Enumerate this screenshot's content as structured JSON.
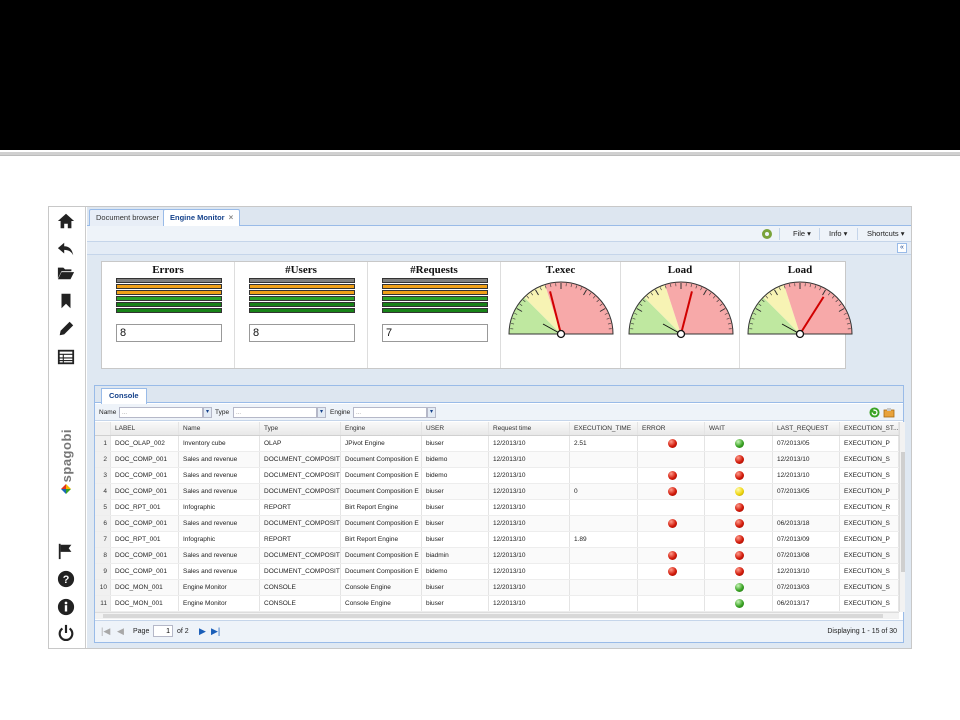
{
  "tabs": [
    {
      "label": "Document browser"
    },
    {
      "label": "Engine Monitor",
      "close": "×"
    }
  ],
  "toolbar": {
    "file": "File ▾",
    "info": "Info ▾",
    "shortcuts": "Shortcuts ▾"
  },
  "brand": {
    "name": "spagobi"
  },
  "widgets": [
    {
      "title": "Errors",
      "value": "8"
    },
    {
      "title": "#Users",
      "value": "8"
    },
    {
      "title": "#Requests",
      "value": "7"
    },
    {
      "title": "T.exec"
    },
    {
      "title": "Load"
    },
    {
      "title": "Load"
    }
  ],
  "bar_colors": [
    "#7f7f7f",
    "#f0a018",
    "#f0a018",
    "#2aa02a",
    "#178317",
    "#178317"
  ],
  "gauges": [
    {
      "needle_fraction": 0.42
    },
    {
      "needle_fraction": 0.58
    },
    {
      "needle_fraction": 0.68
    }
  ],
  "console": {
    "tab": "Console",
    "filters": {
      "name_label": "Name",
      "type_label": "Type",
      "engine_label": "Engine",
      "placeholder": "..."
    },
    "columns": [
      "LABEL",
      "Name",
      "Type",
      "Engine",
      "USER",
      "Request time",
      "EXECUTION_TIME",
      "ERROR",
      "WAIT",
      "LAST_REQUEST",
      "EXECUTION_ST..."
    ],
    "rows": [
      {
        "n": "1",
        "label": "DOC_OLAP_002",
        "name": "Inventory cube",
        "type": "OLAP",
        "engine": "JPivot Engine",
        "user": "biuser",
        "req": "12/2013/10",
        "exec": "2.51",
        "error": "red",
        "wait": "green",
        "last": "07/2013/05",
        "state": "EXECUTION_P"
      },
      {
        "n": "2",
        "label": "DOC_COMP_001",
        "name": "Sales and revenue",
        "type": "DOCUMENT_COMPOSITI",
        "engine": "Document Composition E",
        "user": "bidemo",
        "req": "12/2013/10",
        "exec": "",
        "error": "",
        "wait": "red",
        "last": "12/2013/10",
        "state": "EXECUTION_S"
      },
      {
        "n": "3",
        "label": "DOC_COMP_001",
        "name": "Sales and revenue",
        "type": "DOCUMENT_COMPOSITI",
        "engine": "Document Composition E",
        "user": "bidemo",
        "req": "12/2013/10",
        "exec": "",
        "error": "red",
        "wait": "red",
        "last": "12/2013/10",
        "state": "EXECUTION_S"
      },
      {
        "n": "4",
        "label": "DOC_COMP_001",
        "name": "Sales and revenue",
        "type": "DOCUMENT_COMPOSITI",
        "engine": "Document Composition E",
        "user": "biuser",
        "req": "12/2013/10",
        "exec": "0",
        "error": "red",
        "wait": "yellow",
        "last": "07/2013/05",
        "state": "EXECUTION_P"
      },
      {
        "n": "5",
        "label": "DOC_RPT_001",
        "name": "Infographic",
        "type": "REPORT",
        "engine": "Birt Report Engine",
        "user": "biuser",
        "req": "12/2013/10",
        "exec": "",
        "error": "",
        "wait": "red",
        "last": "",
        "state": "EXECUTION_R"
      },
      {
        "n": "6",
        "label": "DOC_COMP_001",
        "name": "Sales and revenue",
        "type": "DOCUMENT_COMPOSITI",
        "engine": "Document Composition E",
        "user": "biuser",
        "req": "12/2013/10",
        "exec": "",
        "error": "red",
        "wait": "red",
        "last": "06/2013/18",
        "state": "EXECUTION_S"
      },
      {
        "n": "7",
        "label": "DOC_RPT_001",
        "name": "Infographic",
        "type": "REPORT",
        "engine": "Birt Report Engine",
        "user": "biuser",
        "req": "12/2013/10",
        "exec": "1.89",
        "error": "",
        "wait": "red",
        "last": "07/2013/09",
        "state": "EXECUTION_P"
      },
      {
        "n": "8",
        "label": "DOC_COMP_001",
        "name": "Sales and revenue",
        "type": "DOCUMENT_COMPOSITI",
        "engine": "Document Composition E",
        "user": "biadmin",
        "req": "12/2013/10",
        "exec": "",
        "error": "red",
        "wait": "red",
        "last": "07/2013/08",
        "state": "EXECUTION_S"
      },
      {
        "n": "9",
        "label": "DOC_COMP_001",
        "name": "Sales and revenue",
        "type": "DOCUMENT_COMPOSITI",
        "engine": "Document Composition E",
        "user": "bidemo",
        "req": "12/2013/10",
        "exec": "",
        "error": "red",
        "wait": "red",
        "last": "12/2013/10",
        "state": "EXECUTION_S"
      },
      {
        "n": "10",
        "label": "DOC_MON_001",
        "name": "Engine Monitor",
        "type": "CONSOLE",
        "engine": "Console Engine",
        "user": "biuser",
        "req": "12/2013/10",
        "exec": "",
        "error": "",
        "wait": "green",
        "last": "07/2013/03",
        "state": "EXECUTION_S"
      },
      {
        "n": "11",
        "label": "DOC_MON_001",
        "name": "Engine Monitor",
        "type": "CONSOLE",
        "engine": "Console Engine",
        "user": "biuser",
        "req": "12/2013/10",
        "exec": "",
        "error": "",
        "wait": "green",
        "last": "06/2013/17",
        "state": "EXECUTION_S"
      }
    ],
    "pager": {
      "page_label": "Page",
      "page": "1",
      "of": "of 2",
      "displaying": "Displaying 1 - 15 of 30"
    }
  }
}
